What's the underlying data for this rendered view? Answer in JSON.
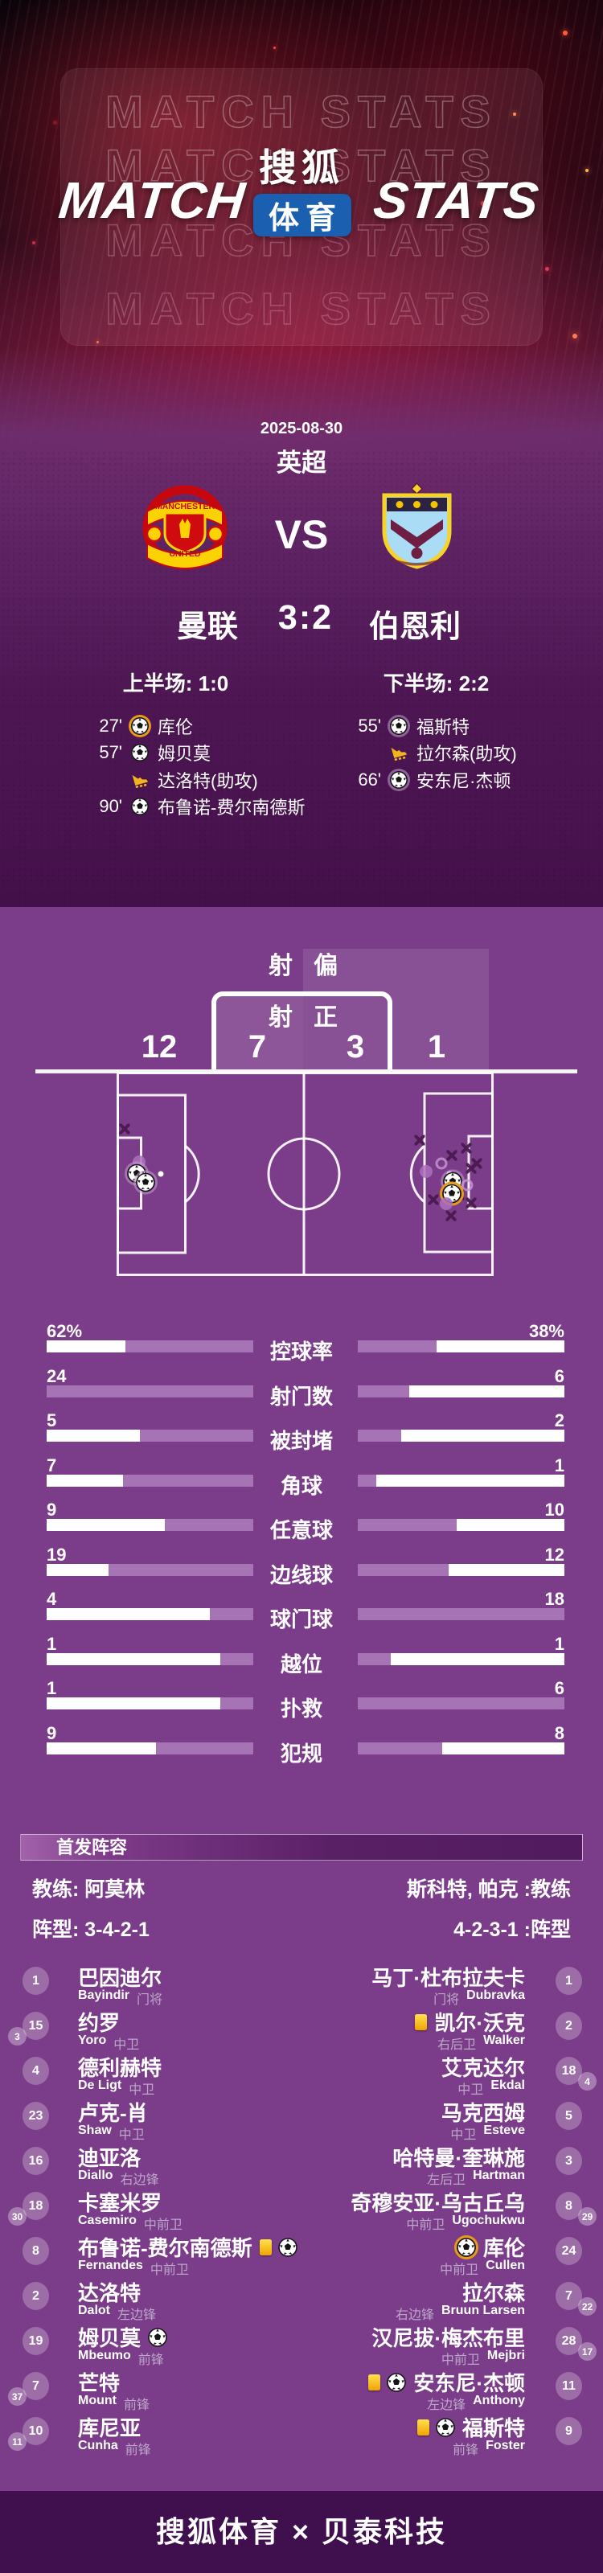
{
  "header": {
    "watermark_rows": [
      "MATCH STATS",
      "MATCH STATS",
      "MATCH STATS",
      "MATCH STATS"
    ],
    "title_left": "MATCH",
    "title_right": "STATS",
    "logo_top": "搜狐",
    "logo_badge": "体育",
    "logo_badge_color": "#1a5fb0"
  },
  "match": {
    "date": "2025-08-30",
    "league": "英超",
    "home_team": "曼联",
    "away_team": "伯恩利",
    "score": "3:2",
    "vs": "VS",
    "home_half": "上半场: 1:0",
    "away_half": "下半场: 2:2",
    "crest_home_top": "MANCHESTER",
    "crest_home_bottom": "UNITED",
    "home_events": [
      {
        "time": "27'",
        "icon": "own-goal",
        "text": "库伦"
      },
      {
        "time": "57'",
        "icon": "goal",
        "text": "姆贝莫"
      },
      {
        "time": "",
        "icon": "assist",
        "text": "达洛特(助攻)"
      },
      {
        "time": "90'",
        "icon": "goal",
        "text": "布鲁诺-费尔南德斯"
      }
    ],
    "away_events": [
      {
        "time": "55'",
        "icon": "goal",
        "text": "福斯特"
      },
      {
        "time": "",
        "icon": "assist",
        "text": "拉尔森(助攻)"
      },
      {
        "time": "66'",
        "icon": "goal",
        "text": "安东尼·杰顿"
      }
    ]
  },
  "shots": {
    "off_target_label": "射偏",
    "on_target_label": "射正",
    "home_off_target": "12",
    "home_on_target": "7",
    "away_on_target": "3",
    "away_off_target": "1",
    "markers": [
      {
        "type": "x",
        "x": 155,
        "y": 1404
      },
      {
        "type": "dot",
        "x": 173,
        "y": 1445
      },
      {
        "type": "ball",
        "x": 170,
        "y": 1462
      },
      {
        "type": "ball",
        "x": 181,
        "y": 1473
      },
      {
        "type": "x",
        "x": 522,
        "y": 1418
      },
      {
        "type": "x",
        "x": 580,
        "y": 1428
      },
      {
        "type": "x",
        "x": 562,
        "y": 1437
      },
      {
        "type": "circle",
        "x": 549,
        "y": 1447
      },
      {
        "type": "x",
        "x": 593,
        "y": 1447
      },
      {
        "type": "x",
        "x": 586,
        "y": 1453
      },
      {
        "type": "dot",
        "x": 530,
        "y": 1457
      },
      {
        "type": "ball",
        "x": 563,
        "y": 1472
      },
      {
        "type": "circle",
        "x": 581,
        "y": 1474
      },
      {
        "type": "x",
        "x": 571,
        "y": 1486
      },
      {
        "type": "ball-own",
        "x": 562,
        "y": 1487
      },
      {
        "type": "x",
        "x": 539,
        "y": 1492
      },
      {
        "type": "x",
        "x": 586,
        "y": 1496
      },
      {
        "type": "dot",
        "x": 555,
        "y": 1497
      },
      {
        "type": "x",
        "x": 561,
        "y": 1512
      }
    ]
  },
  "stats": {
    "rows": [
      {
        "label": "控球率",
        "home": "62%",
        "away": "38%",
        "home_fill": 62,
        "away_fill": 38
      },
      {
        "label": "射门数",
        "home": "24",
        "away": "6",
        "home_fill": 100,
        "away_fill": 25
      },
      {
        "label": "被封堵",
        "home": "5",
        "away": "2",
        "home_fill": 55,
        "away_fill": 21
      },
      {
        "label": "角球",
        "home": "7",
        "away": "1",
        "home_fill": 63,
        "away_fill": 9
      },
      {
        "label": "任意球",
        "home": "9",
        "away": "10",
        "home_fill": 43,
        "away_fill": 48
      },
      {
        "label": "边线球",
        "home": "19",
        "away": "12",
        "home_fill": 70,
        "away_fill": 44
      },
      {
        "label": "球门球",
        "home": "4",
        "away": "18",
        "home_fill": 21,
        "away_fill": 100
      },
      {
        "label": "越位",
        "home": "1",
        "away": "1",
        "home_fill": 16,
        "away_fill": 16
      },
      {
        "label": "扑救",
        "home": "1",
        "away": "6",
        "home_fill": 16,
        "away_fill": 100
      },
      {
        "label": "犯规",
        "home": "9",
        "away": "8",
        "home_fill": 47,
        "away_fill": 41
      }
    ]
  },
  "lineup": {
    "section_title": "首发阵容",
    "home_coach": "教练: 阿莫林",
    "away_coach": "斯科特, 帕克 :教练",
    "home_formation": "阵型: 3-4-2-1",
    "away_formation": "4-2-3-1 :阵型",
    "home_players": [
      {
        "num": "1",
        "name": "巴因迪尔",
        "en": "Bayindir",
        "pos": "门将",
        "icons": []
      },
      {
        "num": "15",
        "sub": "3",
        "name": "约罗",
        "en": "Yoro",
        "pos": "中卫",
        "icons": []
      },
      {
        "num": "4",
        "name": "德利赫特",
        "en": "De Ligt",
        "pos": "中卫",
        "icons": []
      },
      {
        "num": "23",
        "name": "卢克-肖",
        "en": "Shaw",
        "pos": "中卫",
        "icons": []
      },
      {
        "num": "16",
        "name": "迪亚洛",
        "en": "Diallo",
        "pos": "右边锋",
        "icons": []
      },
      {
        "num": "18",
        "sub": "30",
        "name": "卡塞米罗",
        "en": "Casemiro",
        "pos": "中前卫",
        "icons": []
      },
      {
        "num": "8",
        "name": "布鲁诺-费尔南德斯",
        "en": "Fernandes",
        "pos": "中前卫",
        "icons": [
          "yellow",
          "goal"
        ]
      },
      {
        "num": "2",
        "name": "达洛特",
        "en": "Dalot",
        "pos": "左边锋",
        "icons": []
      },
      {
        "num": "19",
        "name": "姆贝莫",
        "en": "Mbeumo",
        "pos": "前锋",
        "icons": [
          "goal"
        ]
      },
      {
        "num": "7",
        "sub": "37",
        "name": "芒特",
        "en": "Mount",
        "pos": "前锋",
        "icons": []
      },
      {
        "num": "10",
        "sub": "11",
        "name": "库尼亚",
        "en": "Cunha",
        "pos": "前锋",
        "icons": []
      }
    ],
    "away_players": [
      {
        "num": "1",
        "name": "马丁·杜布拉夫卡",
        "en": "Dubravka",
        "pos": "门将",
        "icons": []
      },
      {
        "num": "2",
        "name": "凯尔·沃克",
        "en": "Walker",
        "pos": "右后卫",
        "icons": [
          "yellow"
        ]
      },
      {
        "num": "18",
        "sub": "4",
        "name": "艾克达尔",
        "en": "Ekdal",
        "pos": "中卫",
        "icons": []
      },
      {
        "num": "5",
        "name": "马克西姆",
        "en": "Esteve",
        "pos": "中卫",
        "icons": []
      },
      {
        "num": "3",
        "name": "哈特曼·奎琳施",
        "en": "Hartman",
        "pos": "左后卫",
        "icons": []
      },
      {
        "num": "8",
        "sub": "29",
        "name": "奇穆安亚·乌古丘乌",
        "en": "Ugochukwu",
        "pos": "中前卫",
        "icons": []
      },
      {
        "num": "24",
        "name": "库伦",
        "en": "Cullen",
        "pos": "中前卫",
        "icons": [
          "own-goal"
        ]
      },
      {
        "num": "7",
        "sub": "22",
        "name": "拉尔森",
        "en": "Bruun Larsen",
        "pos": "右边锋",
        "icons": []
      },
      {
        "num": "28",
        "sub": "17",
        "name": "汉尼拔·梅杰布里",
        "en": "Mejbri",
        "pos": "中前卫",
        "icons": []
      },
      {
        "num": "11",
        "name": "安东尼·杰顿",
        "en": "Anthony",
        "pos": "左边锋",
        "icons": [
          "yellow",
          "goal"
        ]
      },
      {
        "num": "9",
        "name": "福斯特",
        "en": "Foster",
        "pos": "前锋",
        "icons": [
          "yellow",
          "goal"
        ]
      }
    ]
  },
  "footer": {
    "credit": "搜狐体育 × 贝泰科技"
  },
  "chart_data": [
    {
      "type": "bar",
      "title": "比赛数据对比 (曼联 vs 伯恩利)",
      "categories": [
        "控球率",
        "射门数",
        "被封堵",
        "角球",
        "任意球",
        "边线球",
        "球门球",
        "越位",
        "扑救",
        "犯规"
      ],
      "series": [
        {
          "name": "曼联",
          "values": [
            62,
            24,
            5,
            7,
            9,
            19,
            4,
            1,
            1,
            9
          ]
        },
        {
          "name": "伯恩利",
          "values": [
            38,
            6,
            2,
            1,
            10,
            12,
            18,
            1,
            6,
            8
          ]
        }
      ],
      "notes": "控球率单位为百分比; 双向条形图, 中间为类目标签, 左曼联右伯恩利",
      "legend_position": "none",
      "grid": false
    },
    {
      "type": "bar",
      "title": "射门分布",
      "categories": [
        "射正",
        "射偏"
      ],
      "series": [
        {
          "name": "曼联",
          "values": [
            7,
            12
          ]
        },
        {
          "name": "伯恩利",
          "values": [
            3,
            1
          ]
        }
      ]
    }
  ]
}
